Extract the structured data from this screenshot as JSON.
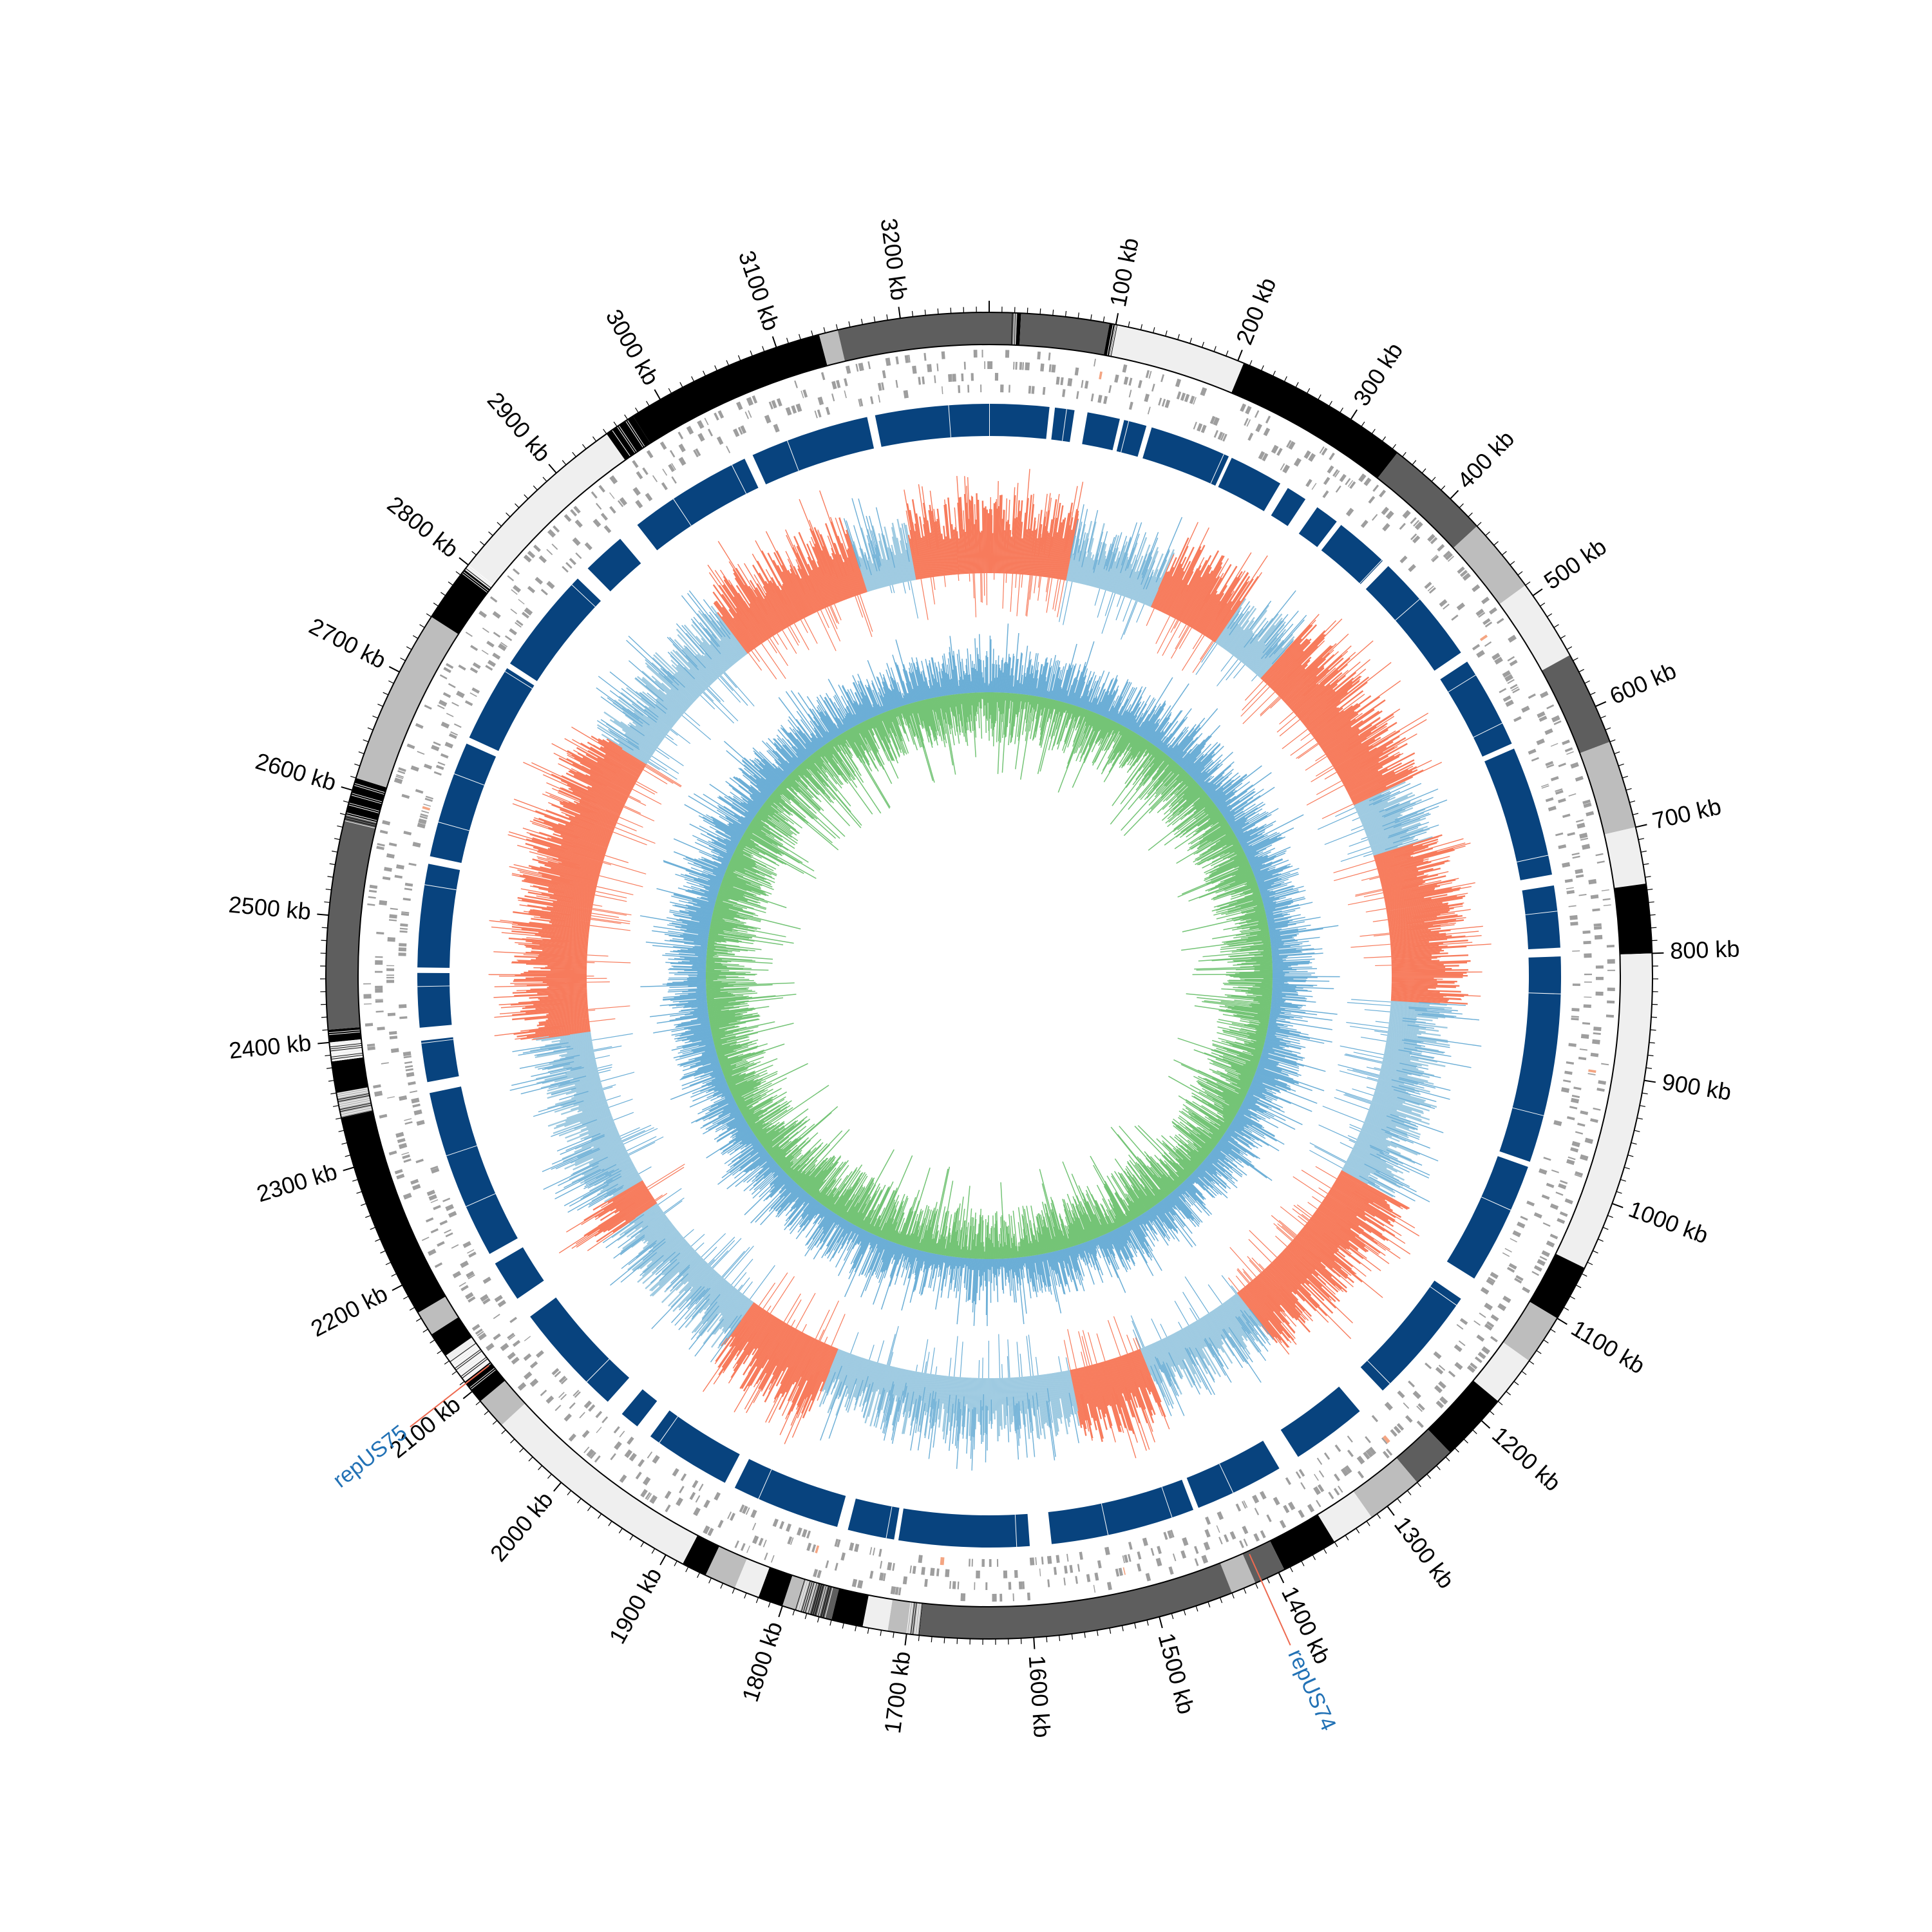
{
  "figure": {
    "genome_length_kb": 3270,
    "tick_unit": "kb",
    "colors": {
      "karyotype_black": "#000000",
      "karyotype_dark": "#5e5e5e",
      "karyotype_mid": "#bdbdbd",
      "karyotype_light": "#efefef",
      "features": "#9e9e9e",
      "feature_highlight": "#f4a582",
      "blocks": "#08437e",
      "gc_skew_positive": "#f77b5c",
      "gc_skew_negative": "#9ecae1",
      "gc_skew_stroke": "#6baed6",
      "gc_content_up": "#6baed6",
      "gc_content_down": "#74c476",
      "callout_line": "#ee6a50",
      "callout_text": "#2171b5"
    },
    "ticks": [
      {
        "kb": 100,
        "label": "100 kb"
      },
      {
        "kb": 200,
        "label": "200 kb"
      },
      {
        "kb": 300,
        "label": "300 kb"
      },
      {
        "kb": 400,
        "label": "400 kb"
      },
      {
        "kb": 500,
        "label": "500 kb"
      },
      {
        "kb": 600,
        "label": "600 kb"
      },
      {
        "kb": 700,
        "label": "700 kb"
      },
      {
        "kb": 800,
        "label": "800 kb"
      },
      {
        "kb": 900,
        "label": "900 kb"
      },
      {
        "kb": 1000,
        "label": "1000 kb"
      },
      {
        "kb": 1100,
        "label": "1100 kb"
      },
      {
        "kb": 1200,
        "label": "1200 kb"
      },
      {
        "kb": 1300,
        "label": "1300 kb"
      },
      {
        "kb": 1400,
        "label": "1400 kb"
      },
      {
        "kb": 1500,
        "label": "1500 kb"
      },
      {
        "kb": 1600,
        "label": "1600 kb"
      },
      {
        "kb": 1700,
        "label": "1700 kb"
      },
      {
        "kb": 1800,
        "label": "1800 kb"
      },
      {
        "kb": 1900,
        "label": "1900 kb"
      },
      {
        "kb": 2000,
        "label": "2000 kb"
      },
      {
        "kb": 2100,
        "label": "2100 kb"
      },
      {
        "kb": 2200,
        "label": "2200 kb"
      },
      {
        "kb": 2300,
        "label": "2300 kb"
      },
      {
        "kb": 2400,
        "label": "2400 kb"
      },
      {
        "kb": 2500,
        "label": "2500 kb"
      },
      {
        "kb": 2600,
        "label": "2600 kb"
      },
      {
        "kb": 2700,
        "label": "2700 kb"
      },
      {
        "kb": 2800,
        "label": "2800 kb"
      },
      {
        "kb": 2900,
        "label": "2900 kb"
      },
      {
        "kb": 3000,
        "label": "3000 kb"
      },
      {
        "kb": 3100,
        "label": "3100 kb"
      },
      {
        "kb": 3200,
        "label": "3200 kb"
      }
    ],
    "karyotype_bands": [
      {
        "start": 0,
        "end": 22,
        "shade": "dark"
      },
      {
        "start": 22,
        "end": 25,
        "shade": "black"
      },
      {
        "start": 25,
        "end": 95,
        "shade": "dark"
      },
      {
        "start": 95,
        "end": 100,
        "shade": "black"
      },
      {
        "start": 100,
        "end": 205,
        "shade": "light"
      },
      {
        "start": 205,
        "end": 345,
        "shade": "black"
      },
      {
        "start": 345,
        "end": 430,
        "shade": "dark"
      },
      {
        "start": 430,
        "end": 490,
        "shade": "mid"
      },
      {
        "start": 490,
        "end": 555,
        "shade": "light"
      },
      {
        "start": 555,
        "end": 630,
        "shade": "dark"
      },
      {
        "start": 630,
        "end": 700,
        "shade": "mid"
      },
      {
        "start": 700,
        "end": 745,
        "shade": "light"
      },
      {
        "start": 745,
        "end": 800,
        "shade": "black"
      },
      {
        "start": 800,
        "end": 1055,
        "shade": "light"
      },
      {
        "start": 1055,
        "end": 1100,
        "shade": "black"
      },
      {
        "start": 1100,
        "end": 1140,
        "shade": "mid"
      },
      {
        "start": 1140,
        "end": 1180,
        "shade": "light"
      },
      {
        "start": 1180,
        "end": 1235,
        "shade": "black"
      },
      {
        "start": 1235,
        "end": 1270,
        "shade": "dark"
      },
      {
        "start": 1270,
        "end": 1315,
        "shade": "mid"
      },
      {
        "start": 1315,
        "end": 1350,
        "shade": "light"
      },
      {
        "start": 1350,
        "end": 1395,
        "shade": "black"
      },
      {
        "start": 1395,
        "end": 1420,
        "shade": "dark"
      },
      {
        "start": 1420,
        "end": 1440,
        "shade": "mid"
      },
      {
        "start": 1440,
        "end": 1690,
        "shade": "dark"
      },
      {
        "start": 1690,
        "end": 1715,
        "shade": "mid"
      },
      {
        "start": 1715,
        "end": 1735,
        "shade": "light"
      },
      {
        "start": 1735,
        "end": 1760,
        "shade": "black"
      },
      {
        "start": 1760,
        "end": 1780,
        "shade": "dark"
      },
      {
        "start": 1780,
        "end": 1800,
        "shade": "mid"
      },
      {
        "start": 1800,
        "end": 1820,
        "shade": "black"
      },
      {
        "start": 1820,
        "end": 1840,
        "shade": "light"
      },
      {
        "start": 1840,
        "end": 1865,
        "shade": "mid"
      },
      {
        "start": 1865,
        "end": 1885,
        "shade": "black"
      },
      {
        "start": 1885,
        "end": 2065,
        "shade": "light"
      },
      {
        "start": 2065,
        "end": 2090,
        "shade": "mid"
      },
      {
        "start": 2090,
        "end": 2110,
        "shade": "black"
      },
      {
        "start": 2110,
        "end": 2135,
        "shade": "light"
      },
      {
        "start": 2135,
        "end": 2155,
        "shade": "black"
      },
      {
        "start": 2155,
        "end": 2175,
        "shade": "mid"
      },
      {
        "start": 2175,
        "end": 2340,
        "shade": "black"
      },
      {
        "start": 2340,
        "end": 2360,
        "shade": "mid"
      },
      {
        "start": 2360,
        "end": 2385,
        "shade": "black"
      },
      {
        "start": 2385,
        "end": 2400,
        "shade": "light"
      },
      {
        "start": 2400,
        "end": 2410,
        "shade": "black"
      },
      {
        "start": 2410,
        "end": 2580,
        "shade": "dark"
      },
      {
        "start": 2580,
        "end": 2610,
        "shade": "black"
      },
      {
        "start": 2610,
        "end": 2750,
        "shade": "mid"
      },
      {
        "start": 2750,
        "end": 2795,
        "shade": "black"
      },
      {
        "start": 2795,
        "end": 2950,
        "shade": "light"
      },
      {
        "start": 2950,
        "end": 2975,
        "shade": "black"
      },
      {
        "start": 2975,
        "end": 3135,
        "shade": "black"
      },
      {
        "start": 3135,
        "end": 3150,
        "shade": "mid"
      },
      {
        "start": 3150,
        "end": 3270,
        "shade": "dark"
      }
    ],
    "block_gaps": [
      [
        3158,
        3165
      ],
      [
        55,
        60
      ],
      [
        78,
        90
      ],
      [
        120,
        124
      ],
      [
        145,
        150
      ],
      [
        225,
        228
      ],
      [
        278,
        286
      ],
      [
        305,
        318
      ],
      [
        340,
        345
      ],
      [
        395,
        402
      ],
      [
        505,
        515
      ],
      [
        600,
        605
      ],
      [
        725,
        735
      ],
      [
        792,
        800
      ],
      [
        990,
        995
      ],
      [
        1108,
        1130
      ],
      [
        1240,
        1268
      ],
      [
        1338,
        1358
      ],
      [
        1440,
        1445
      ],
      [
        1578,
        1598
      ],
      [
        1718,
        1722
      ],
      [
        1765,
        1775
      ],
      [
        1875,
        1885
      ],
      [
        1965,
        1980
      ],
      [
        1998,
        2015
      ],
      [
        2120,
        2140
      ],
      [
        2178,
        2188
      ],
      [
        2345,
        2355
      ],
      [
        2393,
        2405
      ],
      [
        2455,
        2460
      ],
      [
        2555,
        2562
      ],
      [
        2670,
        2676
      ],
      [
        2748,
        2753
      ],
      [
        2852,
        2865
      ],
      [
        2905,
        2925
      ],
      [
        3040,
        3048
      ]
    ],
    "skew_segments": [
      {
        "start": 3230,
        "end": 3270,
        "sign": 1
      },
      {
        "start": 0,
        "end": 100,
        "sign": 1
      },
      {
        "start": 100,
        "end": 215,
        "sign": -1
      },
      {
        "start": 215,
        "end": 310,
        "sign": 1
      },
      {
        "start": 310,
        "end": 385,
        "sign": -1
      },
      {
        "start": 385,
        "end": 590,
        "sign": 1
      },
      {
        "start": 590,
        "end": 660,
        "sign": -1
      },
      {
        "start": 660,
        "end": 850,
        "sign": 1
      },
      {
        "start": 850,
        "end": 1080,
        "sign": -1
      },
      {
        "start": 1080,
        "end": 1290,
        "sign": 1
      },
      {
        "start": 1290,
        "end": 1435,
        "sign": -1
      },
      {
        "start": 1435,
        "end": 1530,
        "sign": 1
      },
      {
        "start": 1530,
        "end": 1835,
        "sign": -1
      },
      {
        "start": 1835,
        "end": 1960,
        "sign": 1
      },
      {
        "start": 1960,
        "end": 2140,
        "sign": -1
      },
      {
        "start": 2140,
        "end": 2175,
        "sign": 1
      },
      {
        "start": 2175,
        "end": 2380,
        "sign": -1
      },
      {
        "start": 2380,
        "end": 2740,
        "sign": 1
      },
      {
        "start": 2740,
        "end": 2935,
        "sign": -1
      },
      {
        "start": 2935,
        "end": 3110,
        "sign": 1
      },
      {
        "start": 3110,
        "end": 3175,
        "sign": -1
      },
      {
        "start": 3175,
        "end": 3230,
        "sign": 1
      }
    ],
    "callouts": [
      {
        "kb": 1415,
        "label": "repUS74"
      },
      {
        "kb": 2108,
        "label": "repUS75"
      }
    ]
  }
}
